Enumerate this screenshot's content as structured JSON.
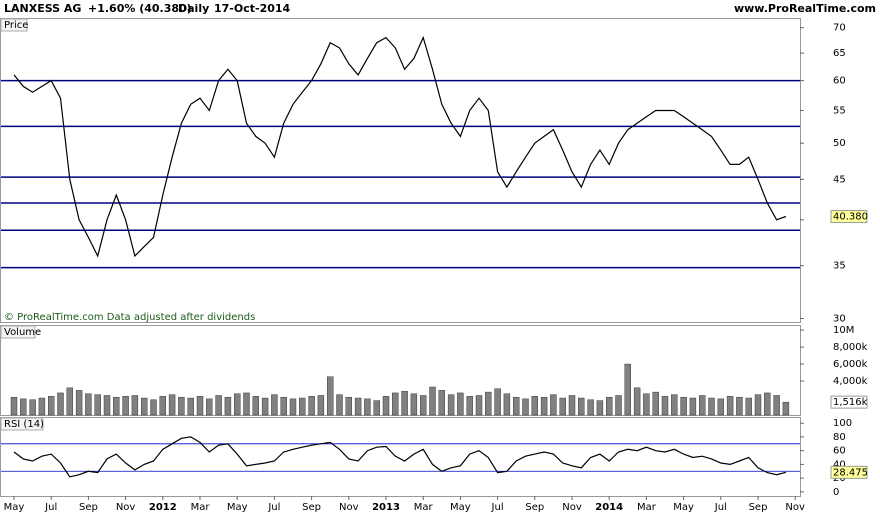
{
  "header": {
    "symbol": "LANXESS AG",
    "change": "+1.60% (40.380)",
    "period": "Daily",
    "date": "17-Oct-2014",
    "site": "www.ProRealTime.com"
  },
  "chart_data": [
    {
      "type": "line",
      "title": "Price",
      "scale": "log",
      "color": "#000000",
      "level_color": "#000080",
      "note": "© ProRealTime.com  Data adjusted after dividends",
      "categories": [
        "May",
        null,
        null,
        null,
        "Jul",
        null,
        null,
        null,
        "Sep",
        null,
        null,
        null,
        "Nov",
        null,
        null,
        null,
        "2012",
        null,
        null,
        null,
        "Mar",
        null,
        null,
        null,
        "May",
        null,
        null,
        null,
        "Jul",
        null,
        null,
        null,
        "Sep",
        null,
        null,
        null,
        "Nov",
        null,
        null,
        null,
        "2013",
        null,
        null,
        null,
        "Mar",
        null,
        null,
        null,
        "May",
        null,
        null,
        null,
        "Jul",
        null,
        null,
        null,
        "Sep",
        null,
        null,
        null,
        "Nov",
        null,
        null,
        null,
        "2014",
        null,
        null,
        null,
        "Mar",
        null,
        null,
        null,
        "May",
        null,
        null,
        null,
        "Jul",
        null,
        null,
        null,
        "Sep",
        null,
        null,
        null,
        "Nov"
      ],
      "values": [
        61,
        59,
        58,
        59,
        60,
        57,
        45,
        40,
        38,
        36,
        40,
        43,
        40,
        36,
        37,
        38,
        43,
        48,
        53,
        56,
        57,
        55,
        60,
        62,
        60,
        53,
        51,
        50,
        48,
        53,
        56,
        58,
        60,
        63,
        67,
        66,
        63,
        61,
        64,
        67,
        68,
        66,
        62,
        64,
        68,
        62,
        56,
        53,
        51,
        55,
        57,
        55,
        46,
        44,
        46,
        48,
        50,
        51,
        52,
        49,
        46,
        44,
        47,
        49,
        47,
        50,
        52,
        53,
        54,
        55,
        55,
        55,
        54,
        53,
        52,
        51,
        49,
        47,
        47,
        48,
        45,
        42,
        40,
        40.38,
        null
      ],
      "levels": [
        60,
        52.5,
        45.3,
        42,
        38.8,
        34.8
      ],
      "current": {
        "value": 40.38,
        "label": "40.380"
      },
      "ylim": [
        29.7,
        72
      ],
      "yticks": [
        70,
        65,
        60,
        55,
        50,
        45,
        40,
        35,
        30
      ]
    },
    {
      "type": "bar",
      "title": "Volume",
      "color": "#808080",
      "values": [
        2100000,
        1900000,
        1800000,
        2000000,
        2200000,
        2600000,
        3200000,
        2900000,
        2500000,
        2400000,
        2300000,
        2100000,
        2200000,
        2300000,
        2000000,
        1800000,
        2200000,
        2400000,
        2100000,
        2000000,
        2200000,
        1900000,
        2300000,
        2100000,
        2500000,
        2600000,
        2200000,
        2000000,
        2400000,
        2100000,
        1900000,
        2000000,
        2200000,
        2300000,
        4500000,
        2400000,
        2100000,
        2000000,
        1900000,
        1700000,
        2200000,
        2600000,
        2800000,
        2500000,
        2300000,
        3300000,
        2900000,
        2400000,
        2600000,
        2200000,
        2300000,
        2700000,
        3100000,
        2500000,
        2100000,
        1900000,
        2200000,
        2100000,
        2400000,
        2000000,
        2300000,
        2000000,
        1800000,
        1700000,
        2100000,
        2300000,
        6000000,
        3200000,
        2500000,
        2700000,
        2200000,
        2400000,
        2100000,
        2000000,
        2300000,
        2000000,
        1900000,
        2200000,
        2100000,
        2000000,
        2400000,
        2600000,
        2300000,
        1516000,
        null
      ],
      "current": {
        "value": 1516000,
        "label": "1,516k"
      },
      "ylim": [
        0,
        10600000
      ],
      "yticks": [
        {
          "value": 10000000,
          "label": "10M"
        },
        {
          "value": 8000000,
          "label": "8,000k"
        },
        {
          "value": 6000000,
          "label": "6,000k"
        },
        {
          "value": 4000000,
          "label": "4,000k"
        }
      ]
    },
    {
      "type": "line",
      "title": "RSI (14)",
      "color": "#000000",
      "level_color": "#0000cc",
      "values": [
        58,
        48,
        45,
        52,
        55,
        42,
        22,
        25,
        30,
        28,
        48,
        55,
        42,
        32,
        40,
        45,
        62,
        70,
        78,
        80,
        72,
        58,
        68,
        70,
        55,
        38,
        40,
        42,
        45,
        58,
        62,
        65,
        68,
        70,
        72,
        62,
        48,
        45,
        60,
        65,
        66,
        52,
        45,
        55,
        62,
        40,
        30,
        35,
        38,
        55,
        60,
        50,
        28,
        30,
        45,
        52,
        55,
        58,
        55,
        42,
        38,
        35,
        50,
        55,
        45,
        58,
        62,
        60,
        65,
        60,
        58,
        62,
        55,
        50,
        52,
        48,
        42,
        40,
        45,
        50,
        35,
        28,
        25,
        28.475,
        null
      ],
      "levels": [
        70,
        30
      ],
      "current": {
        "value": 28.475,
        "label": "28.475"
      },
      "ylim": [
        -6,
        109
      ],
      "yticks": [
        100,
        80,
        60,
        40,
        20,
        0
      ]
    }
  ]
}
